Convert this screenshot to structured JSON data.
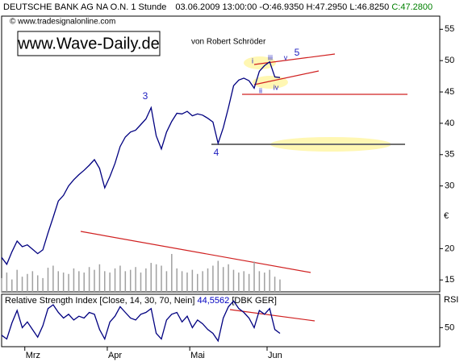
{
  "header": "DEUTSCHE BANK AG NA O.N. 1 Stunde",
  "timestamp": "03.06.2009 13:00:00",
  "ohl": "-O:46.9350 H:47.2950 L:46.8250",
  "close": "C:47.2800",
  "copyright": "© www.tradesignalonline.com",
  "watermark": "www.Wave-Daily.de",
  "author": "von Robert Schröder",
  "chart_data": [
    {
      "type": "line",
      "unit_label": "€",
      "xlim": [
        0,
        85
      ],
      "xticks": [
        {
          "value": 4.5,
          "label": "Mrz"
        },
        {
          "value": 20.5,
          "label": "Apr"
        },
        {
          "value": 36.5,
          "label": "Mai"
        },
        {
          "value": 51.5,
          "label": "Jun"
        }
      ],
      "ylim": [
        13.1,
        57.1
      ],
      "yticks": [
        15,
        20,
        30,
        35,
        40,
        45,
        50,
        55
      ],
      "y2lim": [
        0,
        400
      ],
      "series": [
        {
          "name": "DBK",
          "color": "#000080",
          "values": [
            18.6,
            17.5,
            19.5,
            21.2,
            20.3,
            20.6,
            19.9,
            19.2,
            19.8,
            22.5,
            25.0,
            27.6,
            28.5,
            30.0,
            31.0,
            31.8,
            32.5,
            33.3,
            34.2,
            32.8,
            29.7,
            31.5,
            33.6,
            36.3,
            37.8,
            38.6,
            38.9,
            39.8,
            40.7,
            42.5,
            38.0,
            35.9,
            38.6,
            40.3,
            41.6,
            41.5,
            41.9,
            41.2,
            41.5,
            41.3,
            40.8,
            40.2,
            36.8,
            39.3,
            42.5,
            46.0,
            46.9,
            47.2,
            46.8,
            45.6,
            48.3,
            49.2,
            49.8,
            47.4,
            47.3
          ]
        },
        {
          "name": "Volume",
          "type": "bar",
          "axis": "y2",
          "color": "#a0a0a0",
          "values": [
            20,
            28,
            18,
            32,
            22,
            26,
            30,
            24,
            20,
            35,
            38,
            30,
            28,
            26,
            34,
            30,
            28,
            36,
            32,
            40,
            30,
            28,
            34,
            38,
            30,
            32,
            36,
            28,
            34,
            42,
            40,
            38,
            30,
            55,
            34,
            30,
            28,
            32,
            26,
            30,
            34,
            38,
            45,
            36,
            40,
            32,
            28,
            30,
            26,
            44,
            30,
            28,
            32,
            22,
            18
          ]
        }
      ],
      "annotations": [
        "3",
        "4",
        "i",
        "ii",
        "iii",
        "iv",
        "v",
        "5"
      ]
    },
    {
      "type": "line",
      "title": "Relative Strength Index [Close, 14, 30, 70, Nein]",
      "last_value": "44,5562",
      "symbol": "[DBK GER]",
      "axis_label": "RSI",
      "xlim": [
        0,
        85
      ],
      "ylim": [
        30,
        85
      ],
      "yticks": [
        50
      ],
      "series": [
        {
          "name": "RSI",
          "color": "#000080",
          "values": [
            42,
            38,
            55,
            68,
            50,
            56,
            48,
            40,
            52,
            70,
            74,
            66,
            60,
            64,
            58,
            62,
            60,
            66,
            64,
            48,
            38,
            56,
            62,
            72,
            66,
            60,
            58,
            64,
            66,
            70,
            44,
            38,
            58,
            64,
            66,
            56,
            62,
            50,
            58,
            54,
            48,
            44,
            36,
            60,
            72,
            78,
            70,
            66,
            60,
            50,
            68,
            64,
            70,
            48,
            44
          ]
        }
      ]
    }
  ]
}
